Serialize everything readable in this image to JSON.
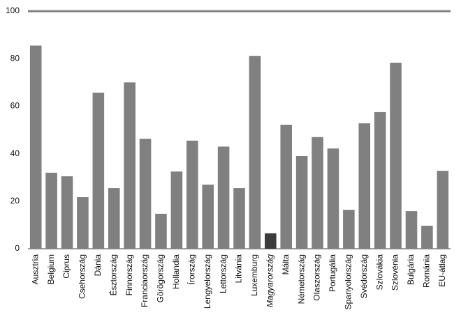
{
  "chart_data": {
    "type": "bar",
    "categories": [
      "Ausztria",
      "Belgium",
      "Ciprus",
      "Csehország",
      "Dánia",
      "Észtország",
      "Finnország",
      "Franciaország",
      "Görögország",
      "Hollandia",
      "Írország",
      "Lengyelország",
      "Lettország",
      "Litvánia",
      "Luxemburg",
      "Magyarország",
      "Málta",
      "Németország",
      "Olaszország",
      "Portugália",
      "Spanyolország",
      "Svédország",
      "Szlovákia",
      "Szlovénia",
      "Bulgária",
      "Románia",
      "EU-átlag"
    ],
    "values": [
      85.5,
      32,
      30.5,
      21.7,
      65.7,
      25.5,
      70,
      46.3,
      14.7,
      32.5,
      45.5,
      27,
      43,
      25.5,
      81.2,
      6.5,
      52.2,
      39,
      47,
      42.2,
      16.4,
      52.8,
      57.5,
      78.3,
      15.8,
      9.7,
      32.8
    ],
    "color": "#808080",
    "highlight": "Magyarország",
    "highlight_color": "#3c3c3c",
    "ylim": [
      0,
      100
    ],
    "yticks": [
      0,
      20,
      40,
      60,
      80,
      100
    ],
    "grid": false
  }
}
